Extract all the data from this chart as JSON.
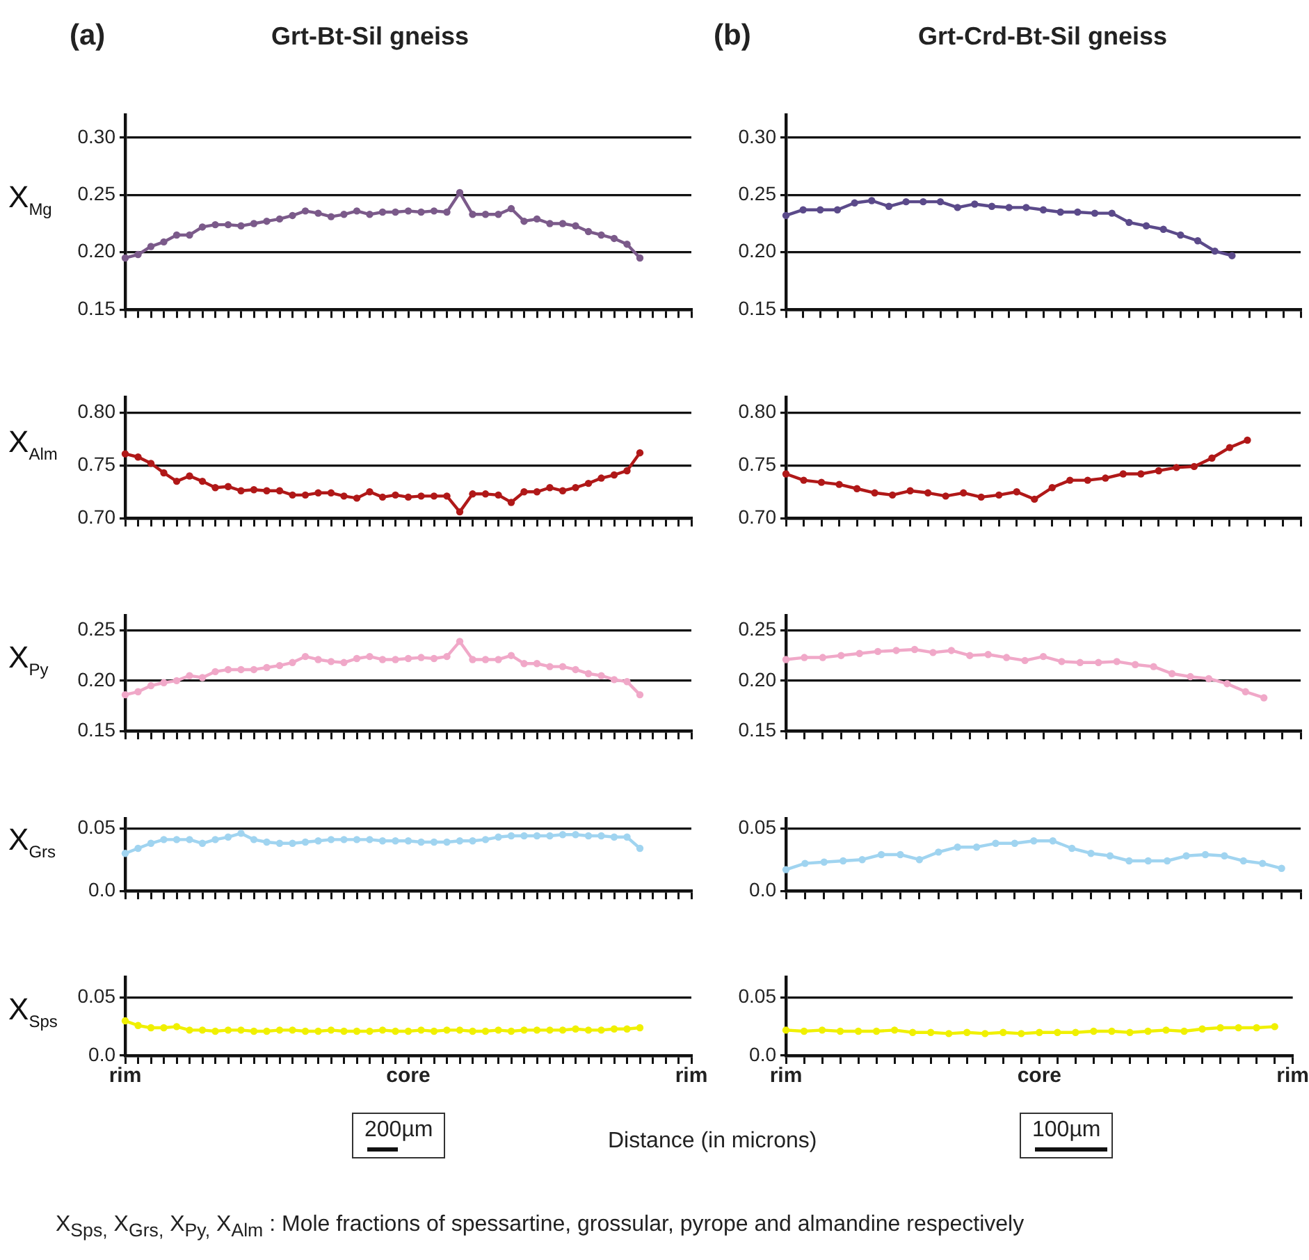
{
  "chart_data": [
    {
      "type": "line",
      "title": "Grt-Bt-Sil gneiss",
      "annotations": [
        "(a)"
      ],
      "ylabel": "X$_{Mg}$",
      "categories": [
        null,
        null,
        null,
        null,
        null,
        null,
        null,
        null,
        null,
        null,
        null,
        null,
        null,
        null,
        null,
        null,
        null,
        null,
        null,
        null,
        null,
        null,
        null,
        null,
        null,
        null,
        null,
        null,
        null,
        null,
        null,
        null,
        null,
        null,
        null,
        null,
        null,
        null,
        null,
        null,
        null,
        null,
        null,
        null,
        null
      ],
      "values": [
        0.195,
        0.198,
        0.205,
        0.209,
        0.215,
        0.215,
        0.222,
        0.224,
        0.224,
        0.223,
        0.225,
        0.227,
        0.229,
        0.232,
        0.236,
        0.234,
        0.231,
        0.233,
        0.236,
        0.233,
        0.235,
        0.235,
        0.236,
        0.235,
        0.236,
        0.235,
        0.252,
        0.233,
        0.233,
        0.233,
        0.238,
        0.227,
        0.229,
        0.225,
        0.225,
        0.223,
        0.218,
        0.215,
        0.212,
        0.207,
        0.195,
        null,
        null,
        null,
        null
      ],
      "color": "#7b5a8a",
      "ylim": [
        0.15,
        0.32
      ],
      "yticks": [
        0.15,
        {
          "value": 0.2,
          "label": "0.20"
        },
        0.25,
        {
          "value": 0.3,
          "label": "0.30"
        }
      ],
      "grid": "y",
      "marker": "circle",
      "line_style": "solid",
      "tick_labels": "y"
    },
    {
      "type": "line",
      "ylabel": "X$_{Alm}$",
      "categories": [
        null,
        null,
        null,
        null,
        null,
        null,
        null,
        null,
        null,
        null,
        null,
        null,
        null,
        null,
        null,
        null,
        null,
        null,
        null,
        null,
        null,
        null,
        null,
        null,
        null,
        null,
        null,
        null,
        null,
        null,
        null,
        null,
        null,
        null,
        null,
        null,
        null,
        null,
        null,
        null,
        null,
        null,
        null,
        null,
        null
      ],
      "values": [
        0.761,
        0.758,
        0.752,
        0.743,
        0.735,
        0.74,
        0.735,
        0.729,
        0.73,
        0.726,
        0.727,
        0.726,
        0.726,
        0.722,
        0.722,
        0.724,
        0.724,
        0.721,
        0.719,
        0.725,
        0.72,
        0.722,
        0.72,
        0.721,
        0.721,
        0.721,
        0.706,
        0.723,
        0.723,
        0.722,
        0.715,
        0.725,
        0.725,
        0.729,
        0.726,
        0.729,
        0.733,
        0.738,
        0.741,
        0.745,
        0.762,
        null,
        null,
        null,
        null
      ],
      "color": "#b01818",
      "ylim": [
        0.7,
        0.815
      ],
      "yticks": [
        {
          "value": 0.7,
          "label": "0.70"
        },
        0.75,
        {
          "value": 0.8,
          "label": "0.80"
        }
      ],
      "grid": "y",
      "marker": "circle",
      "line_style": "solid",
      "tick_labels": "y"
    },
    {
      "type": "line",
      "ylabel": "X$_{Py}$",
      "categories": [
        null,
        null,
        null,
        null,
        null,
        null,
        null,
        null,
        null,
        null,
        null,
        null,
        null,
        null,
        null,
        null,
        null,
        null,
        null,
        null,
        null,
        null,
        null,
        null,
        null,
        null,
        null,
        null,
        null,
        null,
        null,
        null,
        null,
        null,
        null,
        null,
        null,
        null,
        null,
        null,
        null,
        null,
        null,
        null,
        null
      ],
      "values": [
        0.186,
        0.189,
        0.195,
        0.198,
        0.2,
        0.205,
        0.203,
        0.209,
        0.211,
        0.211,
        0.211,
        0.213,
        0.215,
        0.218,
        0.224,
        0.221,
        0.219,
        0.218,
        0.222,
        0.224,
        0.221,
        0.221,
        0.222,
        0.223,
        0.222,
        0.224,
        0.239,
        0.221,
        0.221,
        0.221,
        0.225,
        0.217,
        0.217,
        0.214,
        0.214,
        0.211,
        0.207,
        0.205,
        0.201,
        0.199,
        0.186,
        null,
        null,
        null,
        null
      ],
      "color": "#f0a8c8",
      "ylim": [
        0.15,
        0.265
      ],
      "yticks": [
        0.15,
        {
          "value": 0.2,
          "label": "0.20"
        },
        0.25
      ],
      "grid": "y",
      "marker": "circle",
      "line_style": "solid",
      "tick_labels": "y"
    },
    {
      "type": "line",
      "ylabel": "X$_{Grs}$",
      "categories": [
        null,
        null,
        null,
        null,
        null,
        null,
        null,
        null,
        null,
        null,
        null,
        null,
        null,
        null,
        null,
        null,
        null,
        null,
        null,
        null,
        null,
        null,
        null,
        null,
        null,
        null,
        null,
        null,
        null,
        null,
        null,
        null,
        null,
        null,
        null,
        null,
        null,
        null,
        null,
        null,
        null,
        null,
        null,
        null,
        null
      ],
      "values": [
        0.03,
        0.034,
        0.038,
        0.041,
        0.041,
        0.041,
        0.038,
        0.041,
        0.043,
        0.046,
        0.041,
        0.039,
        0.038,
        0.038,
        0.039,
        0.04,
        0.041,
        0.041,
        0.041,
        0.041,
        0.04,
        0.04,
        0.04,
        0.039,
        0.039,
        0.039,
        0.04,
        0.04,
        0.041,
        0.043,
        0.044,
        0.044,
        0.044,
        0.044,
        0.045,
        0.045,
        0.044,
        0.044,
        0.043,
        0.043,
        0.034,
        null,
        null,
        null,
        null
      ],
      "color": "#a0d4f0",
      "ylim": [
        0,
        0.058
      ],
      "yticks": [
        {
          "value": 0,
          "label": "0.0"
        },
        0.05
      ],
      "grid": "y",
      "marker": "circle",
      "line_style": "solid",
      "tick_labels": "y"
    },
    {
      "type": "line",
      "ylabel": "X$_{Sps}$",
      "xlabel": "Distance (in microns)",
      "annotations": [
        "200µm"
      ],
      "categories": [
        "rim",
        null,
        null,
        null,
        null,
        null,
        null,
        null,
        null,
        null,
        null,
        null,
        null,
        null,
        null,
        null,
        null,
        null,
        null,
        null,
        null,
        null,
        "core",
        null,
        null,
        null,
        null,
        null,
        null,
        null,
        null,
        null,
        null,
        null,
        null,
        null,
        null,
        null,
        null,
        null,
        null,
        null,
        null,
        null,
        "rim"
      ],
      "values": [
        0.03,
        0.026,
        0.024,
        0.024,
        0.025,
        0.022,
        0.022,
        0.021,
        0.022,
        0.022,
        0.021,
        0.021,
        0.022,
        0.022,
        0.021,
        0.021,
        0.022,
        0.021,
        0.021,
        0.021,
        0.022,
        0.021,
        0.021,
        0.022,
        0.021,
        0.022,
        0.022,
        0.021,
        0.021,
        0.022,
        0.021,
        0.022,
        0.022,
        0.022,
        0.022,
        0.023,
        0.022,
        0.022,
        0.023,
        0.023,
        0.024,
        null,
        null,
        null,
        null
      ],
      "color": "#f0f000",
      "ylim": [
        0,
        0.068
      ],
      "yticks": [
        {
          "value": 0,
          "label": "0.0"
        },
        0.05
      ],
      "grid": "y",
      "marker": "circle",
      "line_style": "solid"
    },
    {
      "type": "line",
      "title": "Grt-Crd-Bt-Sil gneiss",
      "annotations": [
        "(b)"
      ],
      "categories": [
        null,
        null,
        null,
        null,
        null,
        null,
        null,
        null,
        null,
        null,
        null,
        null,
        null,
        null,
        null,
        null,
        null,
        null,
        null,
        null,
        null,
        null,
        null,
        null,
        null,
        null,
        null,
        null,
        null,
        null,
        null
      ],
      "values": [
        0.232,
        0.237,
        0.237,
        0.237,
        0.243,
        0.245,
        0.24,
        0.244,
        0.244,
        0.244,
        0.239,
        0.242,
        0.24,
        0.239,
        0.239,
        0.237,
        0.235,
        0.235,
        0.234,
        0.234,
        0.226,
        0.223,
        0.22,
        0.215,
        0.21,
        0.201,
        0.197,
        null,
        null,
        null,
        null
      ],
      "color": "#5b4a8a",
      "ylim": [
        0.15,
        0.32
      ],
      "yticks": [
        0.15,
        {
          "value": 0.2,
          "label": "0.20"
        },
        0.25,
        {
          "value": 0.3,
          "label": "0.30"
        }
      ],
      "grid": "y",
      "marker": "circle",
      "line_style": "solid",
      "tick_labels": "y"
    },
    {
      "type": "line",
      "categories": [
        null,
        null,
        null,
        null,
        null,
        null,
        null,
        null,
        null,
        null,
        null,
        null,
        null,
        null,
        null,
        null,
        null,
        null,
        null,
        null,
        null,
        null,
        null,
        null,
        null,
        null,
        null,
        null,
        null,
        null
      ],
      "values": [
        0.742,
        0.736,
        0.734,
        0.732,
        0.728,
        0.724,
        0.722,
        0.726,
        0.724,
        0.721,
        0.724,
        0.72,
        0.722,
        0.725,
        0.718,
        0.729,
        0.736,
        0.736,
        0.738,
        0.742,
        0.742,
        0.745,
        0.748,
        0.749,
        0.757,
        0.767,
        0.774,
        null,
        null,
        null
      ],
      "color": "#b01818",
      "ylim": [
        0.7,
        0.815
      ],
      "yticks": [
        {
          "value": 0.7,
          "label": "0.70"
        },
        0.75,
        {
          "value": 0.8,
          "label": "0.80"
        }
      ],
      "grid": "y",
      "marker": "circle",
      "line_style": "solid",
      "tick_labels": "y"
    },
    {
      "type": "line",
      "categories": [
        null,
        null,
        null,
        null,
        null,
        null,
        null,
        null,
        null,
        null,
        null,
        null,
        null,
        null,
        null,
        null,
        null,
        null,
        null,
        null,
        null,
        null,
        null,
        null,
        null,
        null,
        null,
        null,
        null
      ],
      "values": [
        0.221,
        0.223,
        0.223,
        0.225,
        0.227,
        0.229,
        0.23,
        0.231,
        0.228,
        0.23,
        0.225,
        0.226,
        0.223,
        0.22,
        0.224,
        0.219,
        0.218,
        0.218,
        0.219,
        0.216,
        0.214,
        0.207,
        0.204,
        0.202,
        0.197,
        0.189,
        0.183,
        null,
        null
      ],
      "color": "#f0a8c8",
      "ylim": [
        0.15,
        0.265
      ],
      "yticks": [
        0.15,
        {
          "value": 0.2,
          "label": "0.20"
        },
        0.25
      ],
      "grid": "y",
      "marker": "circle",
      "line_style": "solid",
      "tick_labels": "y"
    },
    {
      "type": "line",
      "categories": [
        null,
        null,
        null,
        null,
        null,
        null,
        null,
        null,
        null,
        null,
        null,
        null,
        null,
        null,
        null,
        null,
        null,
        null,
        null,
        null,
        null,
        null,
        null,
        null,
        null,
        null,
        null,
        null
      ],
      "values": [
        0.017,
        0.022,
        0.023,
        0.024,
        0.025,
        0.029,
        0.029,
        0.025,
        0.031,
        0.035,
        0.035,
        0.038,
        0.038,
        0.04,
        0.04,
        0.034,
        0.03,
        0.028,
        0.024,
        0.024,
        0.024,
        0.028,
        0.029,
        0.028,
        0.024,
        0.022,
        0.018,
        null
      ],
      "color": "#a0d4f0",
      "ylim": [
        0,
        0.058
      ],
      "yticks": [
        {
          "value": 0,
          "label": "0.0"
        },
        0.05
      ],
      "grid": "y",
      "marker": "circle",
      "line_style": "solid",
      "tick_labels": "y"
    },
    {
      "type": "line",
      "annotations": [
        "100µm",
        "X$_{Sps,}$  X$_{Grs,}$  X$_{Py,}$  X$_{Alm}$ : Mole fractions of spessartine, grossular, pyrope and almandine respectively"
      ],
      "categories": [
        "rim",
        null,
        null,
        null,
        null,
        null,
        null,
        null,
        null,
        null,
        null,
        null,
        null,
        null,
        "core",
        null,
        null,
        null,
        null,
        null,
        null,
        null,
        null,
        null,
        null,
        null,
        null,
        null,
        "rim"
      ],
      "values": [
        0.022,
        0.021,
        0.022,
        0.021,
        0.021,
        0.021,
        0.022,
        0.02,
        0.02,
        0.019,
        0.02,
        0.019,
        0.02,
        0.019,
        0.02,
        0.02,
        0.02,
        0.021,
        0.021,
        0.02,
        0.021,
        0.022,
        0.021,
        0.023,
        0.024,
        0.024,
        0.024,
        0.025,
        null
      ],
      "color": "#f0f000",
      "ylim": [
        0,
        0.068
      ],
      "yticks": [
        {
          "value": 0,
          "label": "0.0"
        },
        0.05
      ],
      "grid": "y",
      "marker": "circle",
      "line_style": "solid"
    }
  ]
}
